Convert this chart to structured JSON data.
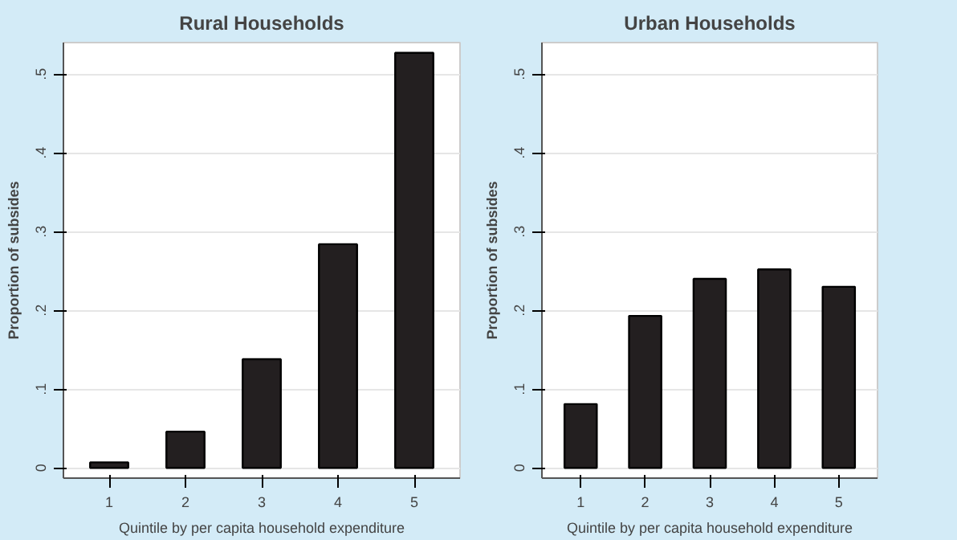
{
  "chart_data": [
    {
      "type": "bar",
      "title": "Rural Households",
      "xlabel": "Quintile by per capita household expenditure",
      "ylabel": "Proportion of subsides",
      "categories": [
        "1",
        "2",
        "3",
        "4",
        "5"
      ],
      "series": [
        {
          "color": "#231f20",
          "values": [
            0.007,
            0.046,
            0.138,
            0.284,
            0.527
          ]
        }
      ],
      "ylim": [
        -0.013,
        0.54
      ],
      "yticks": [
        0,
        {
          "value": 0.1,
          "label": ".1"
        },
        {
          "value": 0.2,
          "label": ".2"
        },
        {
          "value": 0.3,
          "label": ".3"
        },
        {
          "value": 0.4,
          "label": ".4"
        },
        {
          "value": 0.5,
          "label": ".5"
        }
      ],
      "grid": "y"
    },
    {
      "type": "bar",
      "title": "Urban Households",
      "xlabel": "Quintile by per capita household expenditure",
      "ylabel": "Proportion of subsides",
      "categories": [
        "1",
        "2",
        "3",
        "4",
        "5"
      ],
      "series": [
        {
          "color": "#231f20",
          "values": [
            0.081,
            0.193,
            0.24,
            0.252,
            0.23
          ]
        }
      ],
      "ylim": [
        -0.013,
        0.54
      ],
      "yticks": [
        0,
        {
          "value": 0.1,
          "label": ".1"
        },
        {
          "value": 0.2,
          "label": ".2"
        },
        {
          "value": 0.3,
          "label": ".3"
        },
        {
          "value": 0.4,
          "label": ".4"
        },
        {
          "value": 0.5,
          "label": ".5"
        }
      ],
      "grid": "y"
    }
  ]
}
